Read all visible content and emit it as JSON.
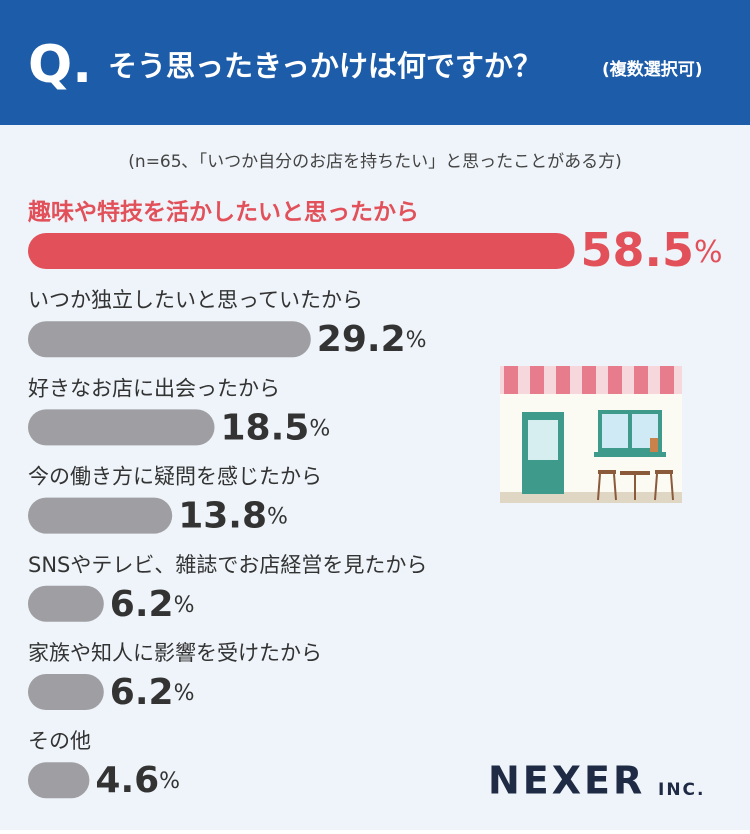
{
  "header": {
    "q": "Q.",
    "title": "そう思ったきっかけは何ですか？",
    "note": "(複数選択可)"
  },
  "chart_data": {
    "type": "bar",
    "subtitle": "(n=65､「いつか自分のお店を持ちたい」と思ったことがある方)",
    "categories": [
      "趣味や特技を活かしたいと思ったから",
      "いつか独立したいと思っていたから",
      "好きなお店に出会ったから",
      "今の働き方に疑問を感じたから",
      "SNSやテレビ、雑誌でお店経営を見たから",
      "家族や知人に影響を受けたから",
      "その他"
    ],
    "values": [
      58.5,
      29.2,
      18.5,
      13.8,
      6.2,
      6.2,
      4.6
    ],
    "value_labels": [
      "58.5%",
      "29.2%",
      "18.5%",
      "13.8%",
      "6.2%",
      "6.2%",
      "4.6%"
    ],
    "colors": [
      "#e2505a",
      "#9e9ea3",
      "#9e9ea3",
      "#9e9ea3",
      "#9e9ea3",
      "#9e9ea3",
      "#9e9ea3"
    ]
  },
  "logo": {
    "name": "NEXER",
    "suffix": "INC."
  }
}
